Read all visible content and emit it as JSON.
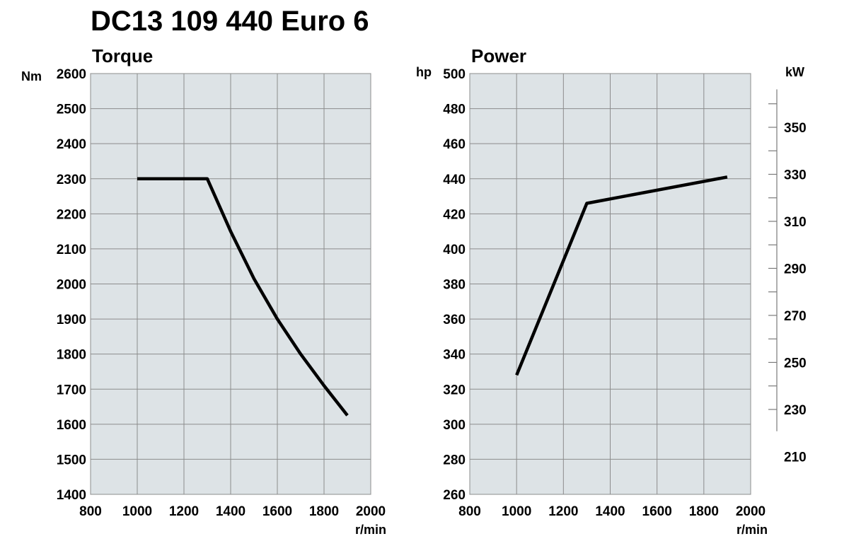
{
  "title": "DC13 109 440 Euro 6",
  "chart_data": [
    {
      "type": "line",
      "title": "Torque",
      "ylabel": "Nm",
      "xlabel": "r/min",
      "xlim": [
        800,
        2000
      ],
      "ylim": [
        1400,
        2600
      ],
      "xticks": [
        "800",
        "1000",
        "1200",
        "1400",
        "1600",
        "1800",
        "2000"
      ],
      "yticks": [
        "1400",
        "1500",
        "1600",
        "1700",
        "1800",
        "1900",
        "2000",
        "2100",
        "2200",
        "2300",
        "2400",
        "2500",
        "2600"
      ],
      "grid": true,
      "background": "#dde3e6",
      "line_color": "#000000",
      "series": [
        {
          "x": [
            1000,
            1100,
            1200,
            1300,
            1400,
            1500,
            1600,
            1700,
            1800,
            1900
          ],
          "y": [
            2300,
            2300,
            2300,
            2300,
            2150,
            2015,
            1900,
            1800,
            1710,
            1625
          ]
        }
      ]
    },
    {
      "type": "line",
      "title": "Power",
      "ylabel": "hp",
      "y2label": "kW",
      "xlabel": "r/min",
      "xlim": [
        800,
        2000
      ],
      "ylim": [
        260,
        500
      ],
      "xticks": [
        "800",
        "1000",
        "1200",
        "1400",
        "1600",
        "1800",
        "2000"
      ],
      "yticks": [
        "260",
        "280",
        "300",
        "320",
        "340",
        "360",
        "380",
        "400",
        "420",
        "440",
        "460",
        "480",
        "500"
      ],
      "y2ticks": [
        "210",
        "230",
        "250",
        "270",
        "290",
        "310",
        "330",
        "350"
      ],
      "y2range_hp": [
        296,
        491
      ],
      "grid": true,
      "background": "#dde3e6",
      "line_color": "#000000",
      "series": [
        {
          "x": [
            1000,
            1300,
            1900
          ],
          "y": [
            328,
            426,
            441
          ]
        }
      ]
    }
  ]
}
